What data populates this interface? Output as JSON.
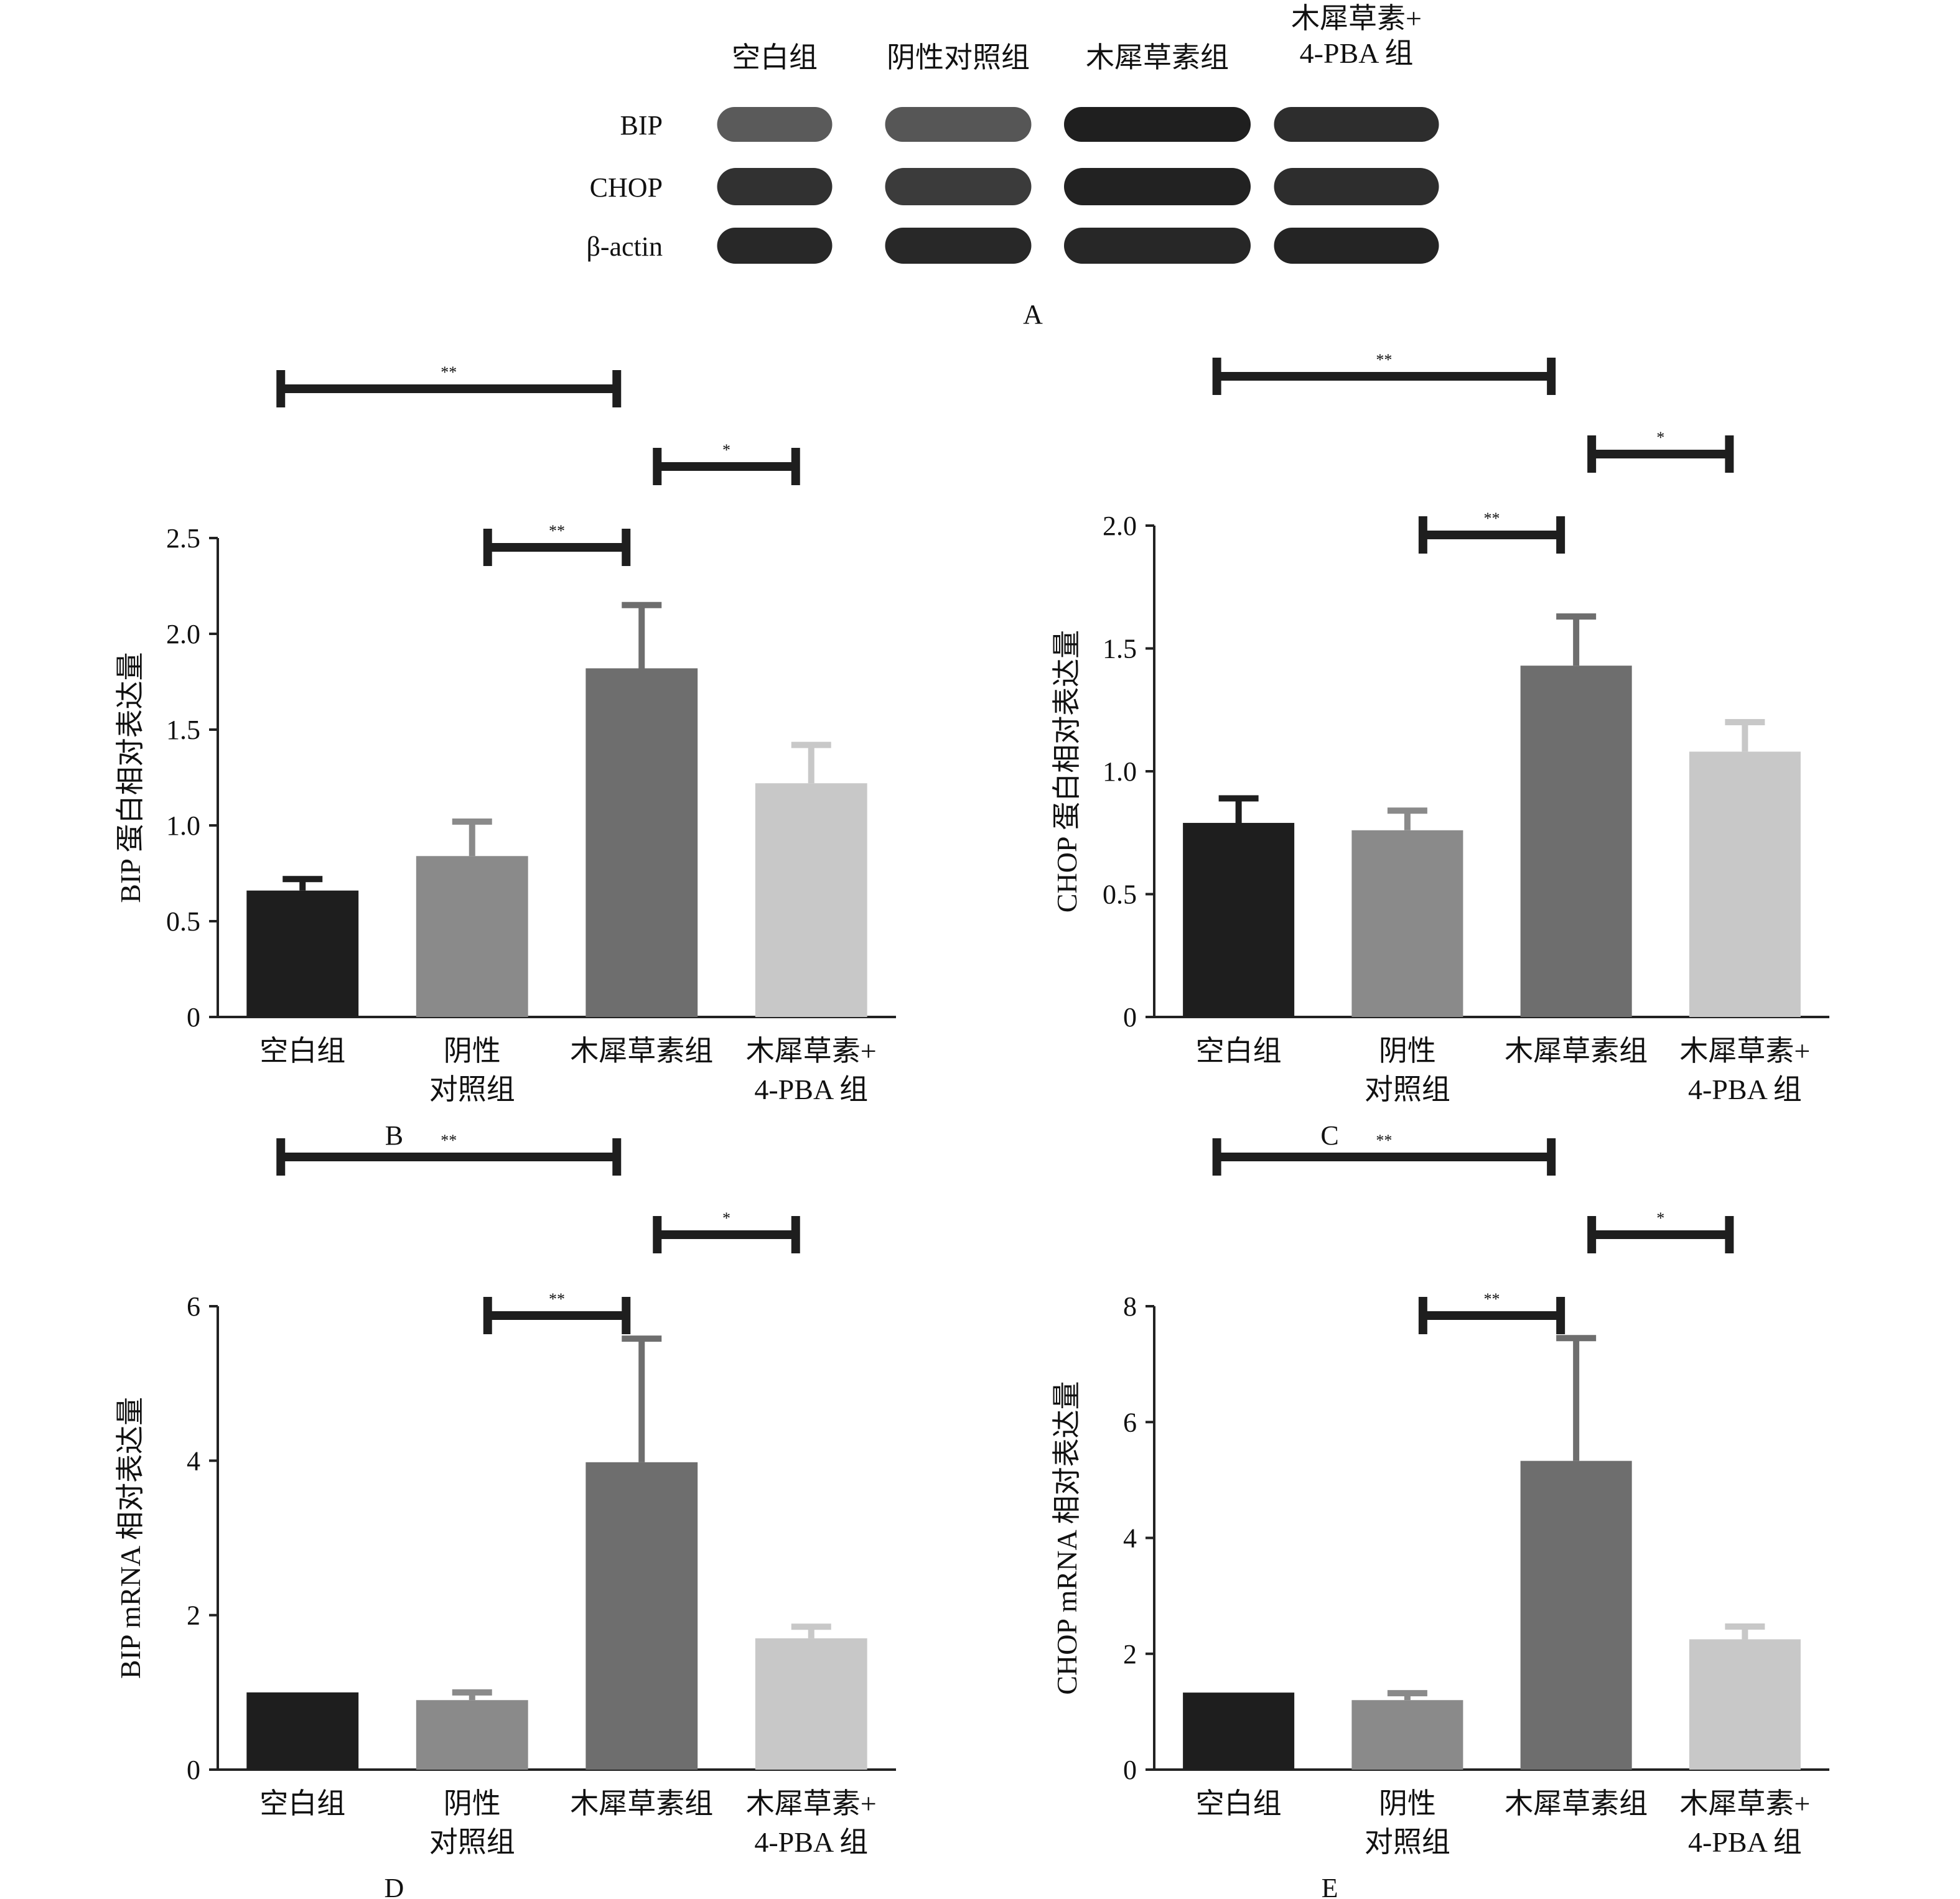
{
  "western_blot": {
    "panel_label": "A",
    "lane_labels": [
      [
        "空白组"
      ],
      [
        "阴性对照组"
      ],
      [
        "木犀草素组"
      ],
      [
        "木犀草素+",
        "4-PBA 组"
      ]
    ],
    "row_labels": [
      "BIP",
      "CHOP",
      "β-actin"
    ],
    "band_intensity": [
      [
        0.72,
        0.74,
        0.98,
        0.92
      ],
      [
        0.9,
        0.86,
        0.97,
        0.92
      ],
      [
        0.94,
        0.94,
        0.95,
        0.96
      ]
    ],
    "band_color": "#1b1b1b"
  },
  "chart_data": [
    {
      "type": "bar",
      "panel_label": "B",
      "ylabel": "BIP 蛋白相对表达量",
      "categories": [
        [
          "空白组"
        ],
        [
          "阴性",
          "对照组"
        ],
        [
          "木犀草素组"
        ],
        [
          "木犀草素+",
          "4-PBA 组"
        ]
      ],
      "values": [
        0.66,
        0.84,
        1.82,
        1.22
      ],
      "errors": [
        0.06,
        0.18,
        0.33,
        0.2
      ],
      "bar_colors": [
        "#1e1e1e",
        "#8a8a8a",
        "#6e6e6e",
        "#c8c8c8"
      ],
      "ylim": [
        0,
        2.5
      ],
      "yticks": [
        0,
        0.5,
        1.0,
        1.5,
        2.0,
        2.5
      ],
      "ytick_labels": [
        "0",
        "0.5",
        "1.0",
        "1.5",
        "2.0",
        "2.5"
      ],
      "significance": [
        {
          "from": 0,
          "to": 2,
          "label": "**",
          "level": 3
        },
        {
          "from": 2,
          "to": 3,
          "label": "*",
          "level": 2
        },
        {
          "from": 1,
          "to": 2,
          "label": "**",
          "level": 1
        }
      ]
    },
    {
      "type": "bar",
      "panel_label": "C",
      "ylabel": "CHOP 蛋白相对表达量",
      "categories": [
        [
          "空白组"
        ],
        [
          "阴性",
          "对照组"
        ],
        [
          "木犀草素组"
        ],
        [
          "木犀草素+",
          "4-PBA 组"
        ]
      ],
      "values": [
        0.79,
        0.76,
        1.43,
        1.08
      ],
      "errors": [
        0.1,
        0.08,
        0.2,
        0.12
      ],
      "bar_colors": [
        "#1e1e1e",
        "#8a8a8a",
        "#6e6e6e",
        "#c8c8c8"
      ],
      "ylim": [
        0,
        2.0
      ],
      "yticks": [
        0,
        0.5,
        1.0,
        1.5,
        2.0
      ],
      "ytick_labels": [
        "0",
        "0.5",
        "1.0",
        "1.5",
        "2.0"
      ],
      "significance": [
        {
          "from": 0,
          "to": 2,
          "label": "**",
          "level": 3
        },
        {
          "from": 2,
          "to": 3,
          "label": "*",
          "level": 2
        },
        {
          "from": 1,
          "to": 2,
          "label": "**",
          "level": 1
        }
      ]
    },
    {
      "type": "bar",
      "panel_label": "D",
      "ylabel": "BIP mRNA 相对表达量",
      "categories": [
        [
          "空白组"
        ],
        [
          "阴性",
          "对照组"
        ],
        [
          "木犀草素组"
        ],
        [
          "木犀草素+",
          "4-PBA 组"
        ]
      ],
      "values": [
        1.0,
        0.9,
        3.98,
        1.7
      ],
      "errors": [
        0.0,
        0.1,
        1.6,
        0.15
      ],
      "bar_colors": [
        "#1e1e1e",
        "#8a8a8a",
        "#6e6e6e",
        "#c8c8c8"
      ],
      "ylim": [
        0,
        6
      ],
      "yticks": [
        0,
        2,
        4,
        6
      ],
      "ytick_labels": [
        "0",
        "2",
        "4",
        "6"
      ],
      "significance": [
        {
          "from": 0,
          "to": 2,
          "label": "**",
          "level": 3
        },
        {
          "from": 2,
          "to": 3,
          "label": "*",
          "level": 2
        },
        {
          "from": 1,
          "to": 2,
          "label": "**",
          "level": 1
        }
      ]
    },
    {
      "type": "bar",
      "panel_label": "E",
      "ylabel": "CHOP mRNA 相对表达量",
      "categories": [
        [
          "空白组"
        ],
        [
          "阴性",
          "对照组"
        ],
        [
          "木犀草素组"
        ],
        [
          "木犀草素+",
          "4-PBA 组"
        ]
      ],
      "values": [
        1.33,
        1.2,
        5.33,
        2.25
      ],
      "errors": [
        0.0,
        0.12,
        2.12,
        0.22
      ],
      "bar_colors": [
        "#1e1e1e",
        "#8a8a8a",
        "#6e6e6e",
        "#c8c8c8"
      ],
      "ylim": [
        0,
        8
      ],
      "yticks": [
        0,
        2,
        4,
        6,
        8
      ],
      "ytick_labels": [
        "0",
        "2",
        "4",
        "6",
        "8"
      ],
      "significance": [
        {
          "from": 0,
          "to": 2,
          "label": "**",
          "level": 3
        },
        {
          "from": 2,
          "to": 3,
          "label": "*",
          "level": 2
        },
        {
          "from": 1,
          "to": 2,
          "label": "**",
          "level": 1
        }
      ]
    }
  ]
}
